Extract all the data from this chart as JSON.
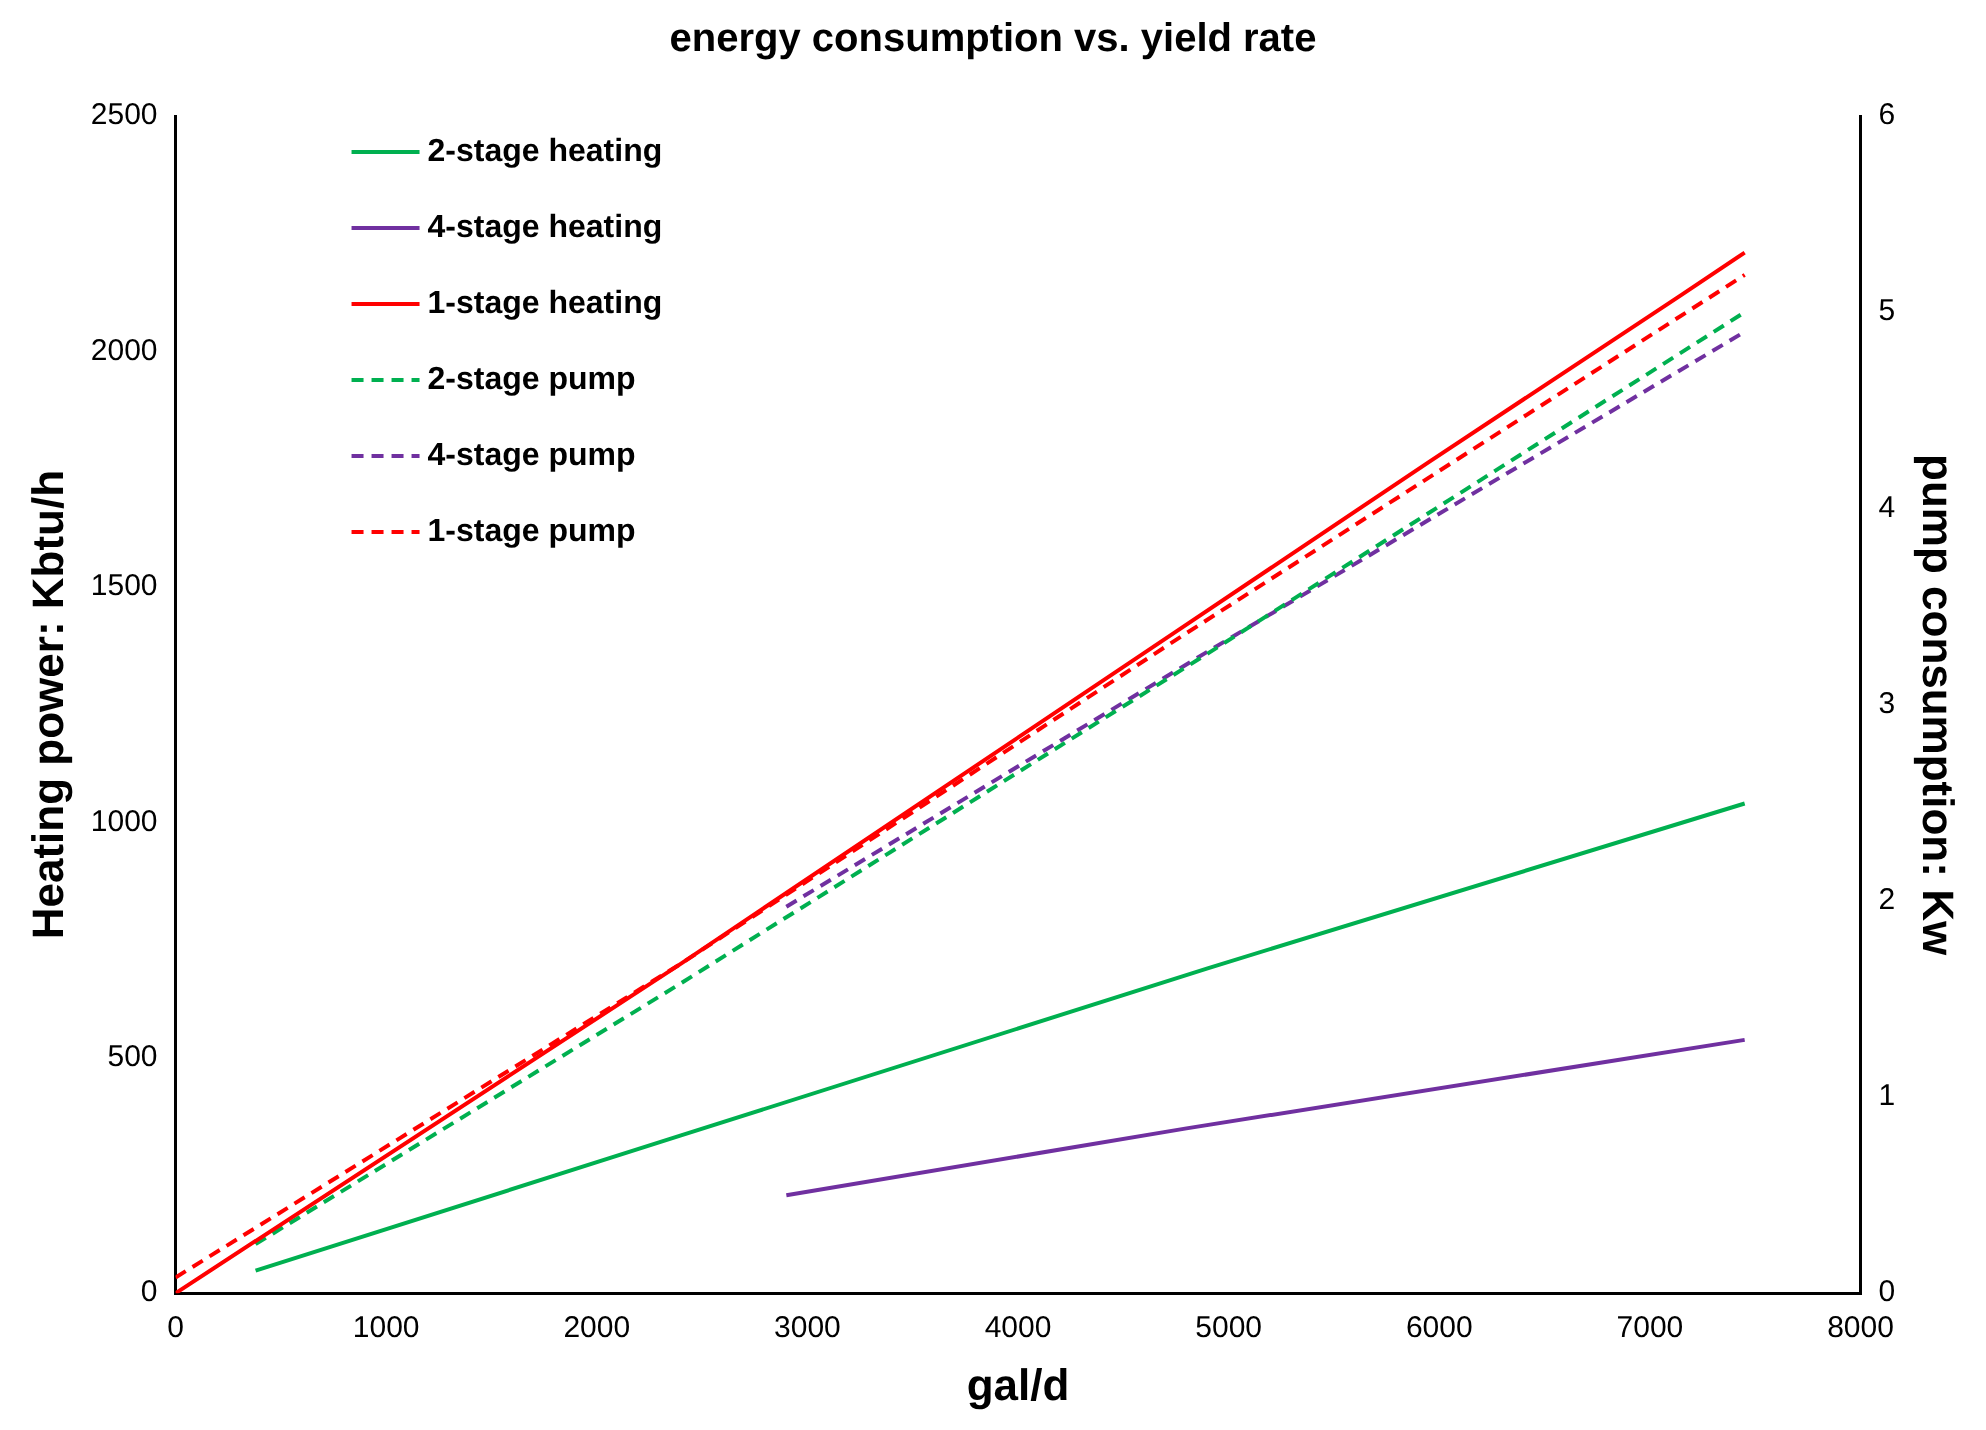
{
  "chart_data": {
    "type": "line",
    "title": "energy consumption vs. yield rate",
    "xlabel": "gal/d",
    "ylabel": "Heating power: Kbtu/h",
    "y2label": "pump consumption: Kw",
    "xlim": [
      0,
      8000
    ],
    "xticks": [
      0,
      1000,
      2000,
      3000,
      4000,
      5000,
      6000,
      7000,
      8000
    ],
    "ylim": [
      0,
      2500
    ],
    "yticks": [
      0,
      500,
      1000,
      1500,
      2000,
      2500
    ],
    "y2lim": [
      0,
      6
    ],
    "y2ticks": [
      0,
      1,
      2,
      3,
      4,
      5,
      6
    ],
    "grid": false,
    "legend": "top left",
    "marker": "none",
    "series": [
      {
        "name": "2-stage heating",
        "color": "#00b050",
        "line_style": "solid",
        "x": [
          380,
          2400,
          4900,
          7450
        ],
        "values": [
          48,
          335,
          690,
          1040
        ]
      },
      {
        "name": "4-stage heating",
        "color": "#7030a0",
        "line_style": "solid",
        "x": [
          2900,
          4800,
          7450
        ],
        "values": [
          208,
          350,
          538
        ]
      },
      {
        "name": "1-stage heating",
        "color": "#ff0000",
        "line_style": "solid",
        "x": [
          0,
          2400,
          4750,
          5950,
          7150,
          7450
        ],
        "values": [
          0,
          700,
          1405,
          1765,
          2120,
          2210
        ]
      },
      {
        "name": "2-stage pump",
        "color": "#00b050",
        "line_style": "dashed",
        "axis": "y2",
        "x": [
          380,
          2400,
          4900,
          7450
        ],
        "values": [
          0.25,
          1.58,
          3.26,
          5.0
        ]
      },
      {
        "name": "4-stage pump",
        "color": "#7030a0",
        "line_style": "dashed",
        "axis": "y2",
        "x": [
          2900,
          4900,
          7450
        ],
        "values": [
          1.97,
          3.27,
          4.9
        ]
      },
      {
        "name": "1-stage pump",
        "color": "#ff0000",
        "line_style": "dashed",
        "axis": "y2",
        "x": [
          0,
          2400,
          4750,
          7450
        ],
        "values": [
          0.08,
          1.68,
          3.33,
          5.19
        ]
      }
    ]
  }
}
